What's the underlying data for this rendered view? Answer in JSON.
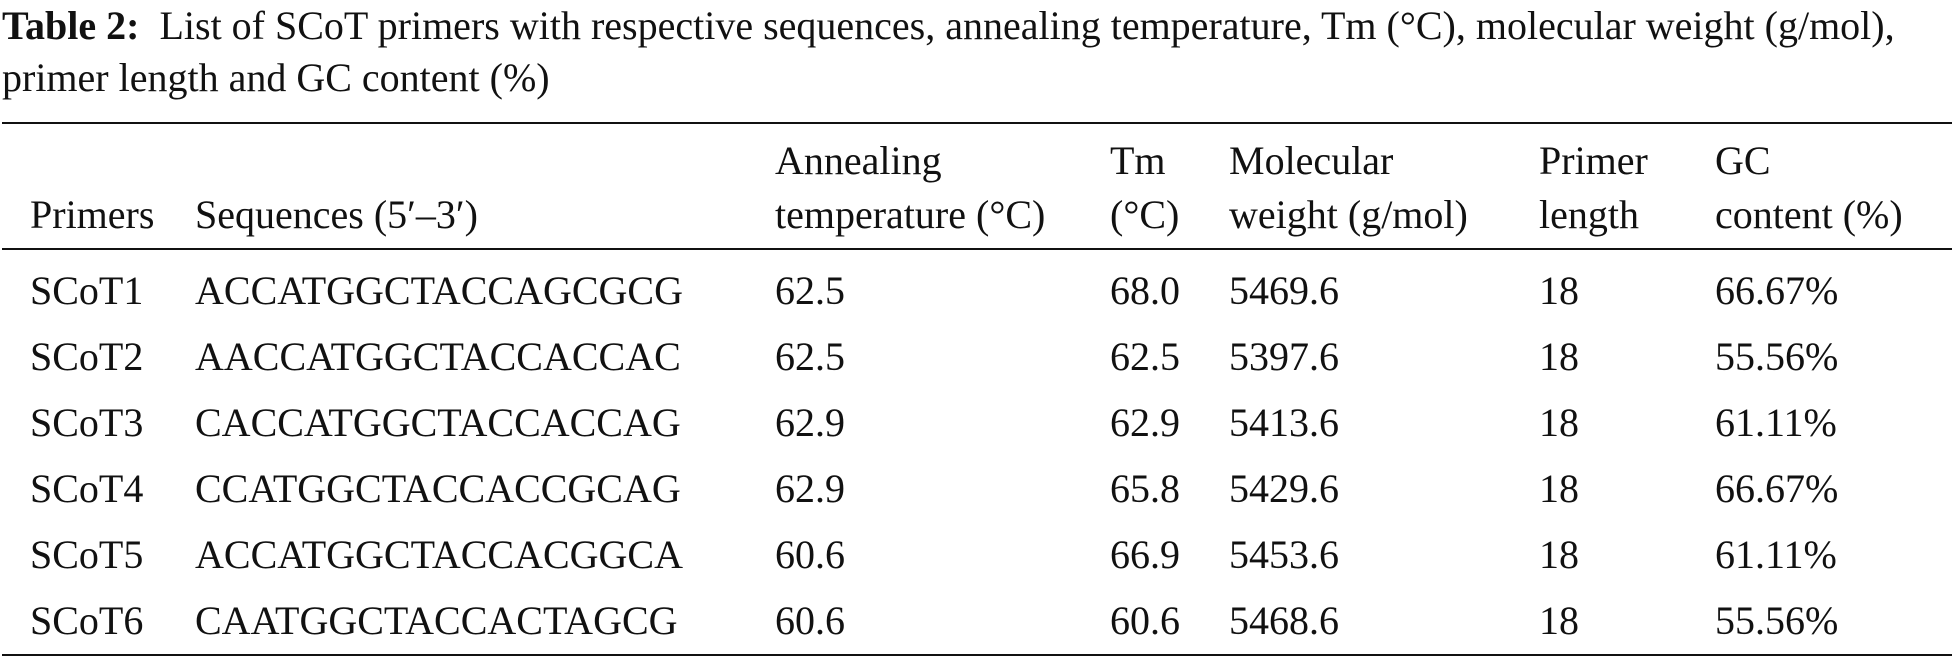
{
  "caption": {
    "label": "Table 2:",
    "text": "List of SCoT primers with respective sequences, annealing temperature, Tm (°C), molecular weight (g/mol), primer length and GC content (%)"
  },
  "table": {
    "headers": [
      {
        "line1": "Primers",
        "line2": ""
      },
      {
        "line1": "Sequences (5′–3′)",
        "line2": ""
      },
      {
        "line1": "Annealing",
        "line2": "temperature (°C)"
      },
      {
        "line1": "Tm",
        "line2": "(°C)"
      },
      {
        "line1": "Molecular",
        "line2": "weight (g/mol)"
      },
      {
        "line1": "Primer",
        "line2": "length"
      },
      {
        "line1": "GC",
        "line2": "content (%)"
      }
    ],
    "rows": [
      [
        "SCoT1",
        "ACCATGGCTACCAGCGCG",
        "62.5",
        "68.0",
        "5469.6",
        "18",
        "66.67%"
      ],
      [
        "SCoT2",
        "AACCATGGCTACCACCAC",
        "62.5",
        "62.5",
        "5397.6",
        "18",
        "55.56%"
      ],
      [
        "SCoT3",
        "CACCATGGCTACCACCAG",
        "62.9",
        "62.9",
        "5413.6",
        "18",
        "61.11%"
      ],
      [
        "SCoT4",
        "CCATGGCTACCACCGCAG",
        "62.9",
        "65.8",
        "5429.6",
        "18",
        "66.67%"
      ],
      [
        "SCoT5",
        "ACCATGGCTACCACGGCA",
        "60.6",
        "66.9",
        "5453.6",
        "18",
        "61.11%"
      ],
      [
        "SCoT6",
        "CAATGGCTACCACTAGCG",
        "60.6",
        "60.6",
        "5468.6",
        "18",
        "55.56%"
      ]
    ]
  }
}
